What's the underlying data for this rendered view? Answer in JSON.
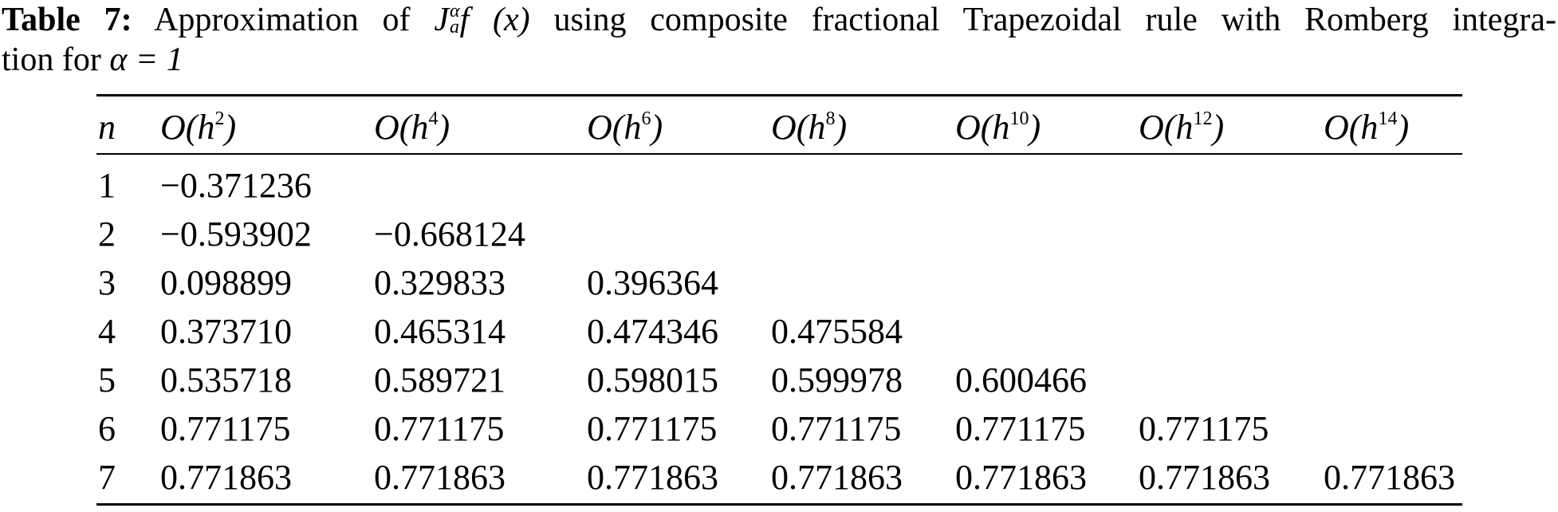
{
  "caption": {
    "label": "Table 7:",
    "text_before": "Approximation of",
    "math_J": "J",
    "math_sup": "α",
    "math_sub": "a",
    "math_fx": "f (x)",
    "text_after": "using composite fractional Trapezoidal rule with Romberg integra-",
    "line2_text": "tion for",
    "line2_math": "α = 1"
  },
  "table": {
    "headers": [
      {
        "base": "n",
        "sup": ""
      },
      {
        "base": "O(h",
        "sup": "2",
        "close": ")"
      },
      {
        "base": "O(h",
        "sup": "4",
        "close": ")"
      },
      {
        "base": "O(h",
        "sup": "6",
        "close": ")"
      },
      {
        "base": "O(h",
        "sup": "8",
        "close": ")"
      },
      {
        "base": "O(h",
        "sup": "10",
        "close": ")"
      },
      {
        "base": "O(h",
        "sup": "12",
        "close": ")"
      },
      {
        "base": "O(h",
        "sup": "14",
        "close": ")"
      }
    ],
    "rows": [
      [
        "1",
        "−0.371236"
      ],
      [
        "2",
        "−0.593902",
        "−0.668124"
      ],
      [
        "3",
        "0.098899",
        "0.329833",
        "0.396364"
      ],
      [
        "4",
        "0.373710",
        "0.465314",
        "0.474346",
        "0.475584"
      ],
      [
        "5",
        "0.535718",
        "0.589721",
        "0.598015",
        "0.599978",
        "0.600466"
      ],
      [
        "6",
        "0.771175",
        "0.771175",
        "0.771175",
        "0.771175",
        "0.771175",
        "0.771175"
      ],
      [
        "7",
        "0.771863",
        "0.771863",
        "0.771863",
        "0.771863",
        "0.771863",
        "0.771863",
        "0.771863"
      ]
    ]
  }
}
